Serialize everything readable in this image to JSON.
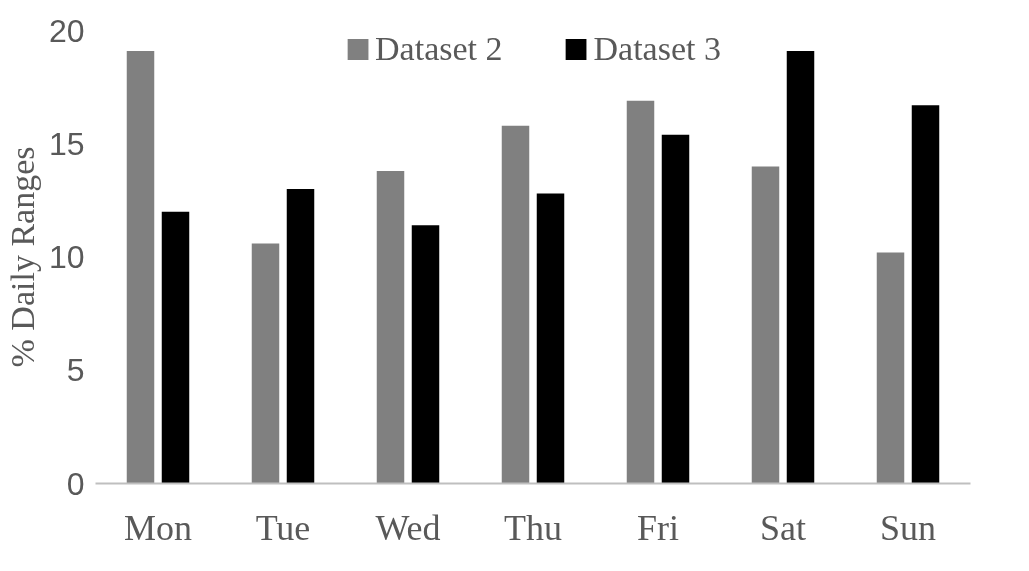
{
  "chart_data": {
    "type": "bar",
    "ylabel": "% Daily Ranges",
    "categories": [
      "Mon",
      "Tue",
      "Wed",
      "Thu",
      "Fri",
      "Sat",
      "Sun"
    ],
    "series": [
      {
        "name": "Dataset 2",
        "color": "#808080",
        "values": [
          19.1,
          10.6,
          13.8,
          15.8,
          16.9,
          14.0,
          10.2
        ]
      },
      {
        "name": "Dataset 3",
        "color": "#000000",
        "values": [
          12.0,
          13.0,
          11.4,
          12.8,
          15.4,
          19.1,
          16.7
        ]
      }
    ],
    "ylim": [
      0,
      20
    ],
    "yticks": [
      0,
      5,
      10,
      15,
      20
    ],
    "grid": false,
    "legend": "top"
  }
}
